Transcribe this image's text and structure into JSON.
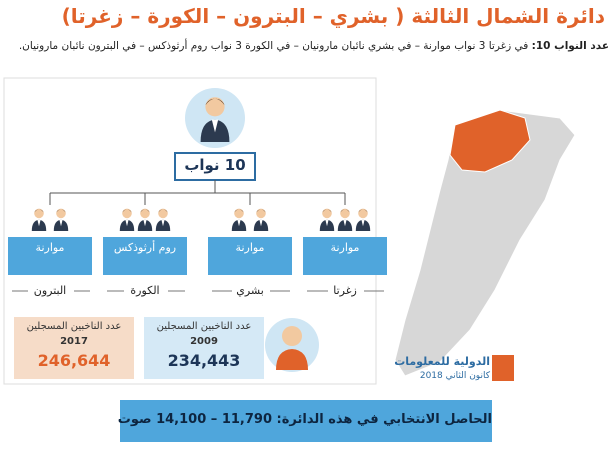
{
  "header": {
    "title": "دائرة الشمال الثالثة ( بشري – البترون – الكورة – زغرتا)",
    "subtitle_label": "عدد النواب 10:",
    "subtitle": "في زغرتا 3 نواب موارنة – في بشري نائبان مارونيان – في الكورة 3 نواب روم أرثوذكس – في البترون نائبان مارونيان."
  },
  "total_seats": "10 نواب",
  "districts": [
    {
      "name": "البترون",
      "sect": "موارنة"
    },
    {
      "name": "الكورة",
      "sect": "روم أرثوذكس"
    },
    {
      "name": "بشري",
      "sect": "موارنة"
    },
    {
      "name": "زغرتا",
      "sect": "موارنة"
    }
  ],
  "voters": [
    {
      "label": "عدد الناخبين المسجلين",
      "year": "2017",
      "count": "246,644"
    },
    {
      "label": "عدد الناخبين المسجلين",
      "year": "2009",
      "count": "234,443"
    }
  ],
  "logo": {
    "name": "الدولية للمعلومات",
    "date": "كانون الثاني 2018"
  },
  "footer": "الحاصل الانتخابي في هذه الدائرة: 11,790 – 14,100 صوت"
}
